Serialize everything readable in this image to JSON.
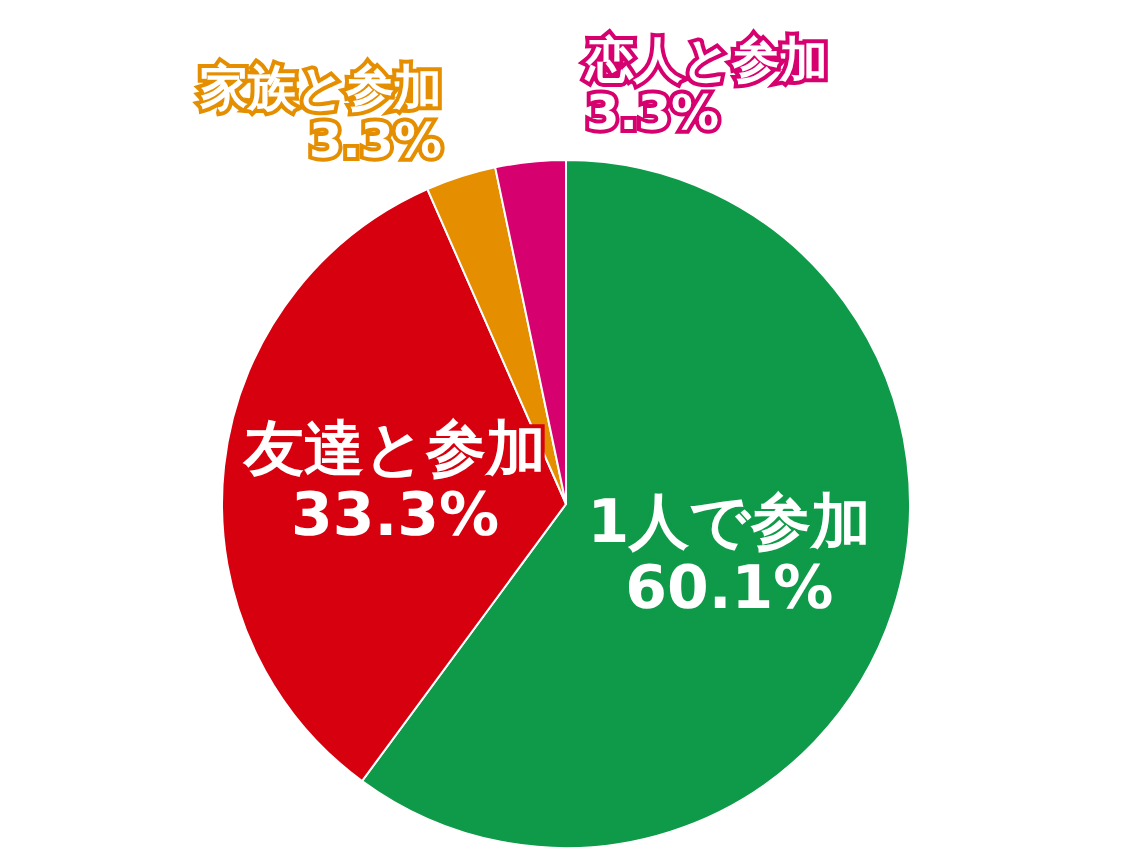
{
  "chart_data": {
    "type": "pie",
    "categories": [
      "1人で参加",
      "友達と参加",
      "家族と参加",
      "恋人と参加"
    ],
    "values": [
      60.1,
      33.3,
      3.3,
      3.3
    ],
    "value_labels": [
      "60.1%",
      "33.3%",
      "3.3%",
      "3.3%"
    ],
    "colors": [
      "#0e9a48",
      "#d7000f",
      "#e48e00",
      "#d6006f"
    ]
  }
}
